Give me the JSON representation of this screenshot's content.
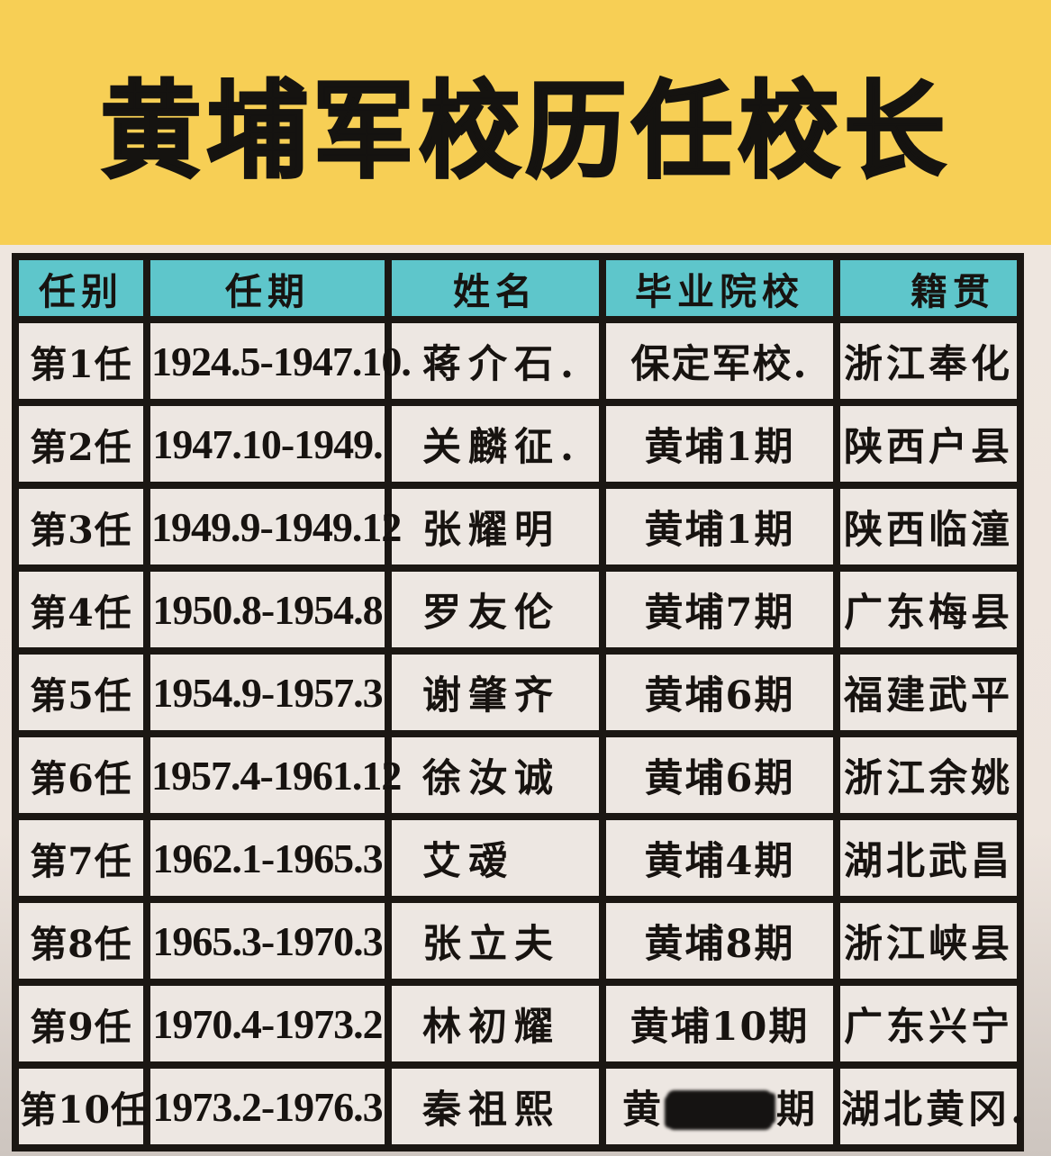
{
  "banner": {
    "title": "黄埔军校历任校长",
    "bg_color": "#F7CF55",
    "text_color": "#151310"
  },
  "table": {
    "header_bg": "#5EC6CB",
    "cell_bg": "#EDE7E2",
    "border_color": "#1B1713",
    "columns": [
      {
        "key": "term",
        "label": "任别"
      },
      {
        "key": "tenure",
        "label": "任期"
      },
      {
        "key": "name",
        "label": "姓名"
      },
      {
        "key": "school",
        "label": "毕业院校"
      },
      {
        "key": "native",
        "label": "籍贯"
      }
    ],
    "rows": [
      {
        "term": "第1任",
        "tenure": "1924.5-1947.10.",
        "name": "蒋介石.",
        "school": "保定军校.",
        "native": "浙江奉化"
      },
      {
        "term": "第2任",
        "tenure": "1947.10-1949.",
        "name": "关麟征.",
        "school": "黄埔1期",
        "native": "陕西户县"
      },
      {
        "term": "第3任",
        "tenure": "1949.9-1949.12",
        "name": "张耀明",
        "school": "黄埔1期",
        "native": "陕西临潼"
      },
      {
        "term": "第4任",
        "tenure": "1950.8-1954.8",
        "name": "罗友伦",
        "school": "黄埔7期",
        "native": "广东梅县"
      },
      {
        "term": "第5任",
        "tenure": "1954.9-1957.3",
        "name": "谢肇齐",
        "school": "黄埔6期",
        "native": "福建武平"
      },
      {
        "term": "第6任",
        "tenure": "1957.4-1961.12",
        "name": "徐汝诚",
        "school": "黄埔6期",
        "native": "浙江余姚"
      },
      {
        "term": "第7任",
        "tenure": "1962.1-1965.3",
        "name": "艾叆",
        "school": "黄埔4期",
        "native": "湖北武昌"
      },
      {
        "term": "第8任",
        "tenure": "1965.3-1970.3",
        "name": "张立夫",
        "school": "黄埔8期",
        "native": "浙江峡县"
      },
      {
        "term": "第9任",
        "tenure": "1970.4-1973.2",
        "name": "林初耀",
        "school": "黄埔10期",
        "native": "广东兴宁"
      },
      {
        "term": "第10任",
        "tenure": "1973.2-1976.3",
        "name": "秦祖熙",
        "school_prefix": "黄",
        "school_redacted": true,
        "school_suffix": "期",
        "native": "湖北黄冈."
      }
    ]
  }
}
